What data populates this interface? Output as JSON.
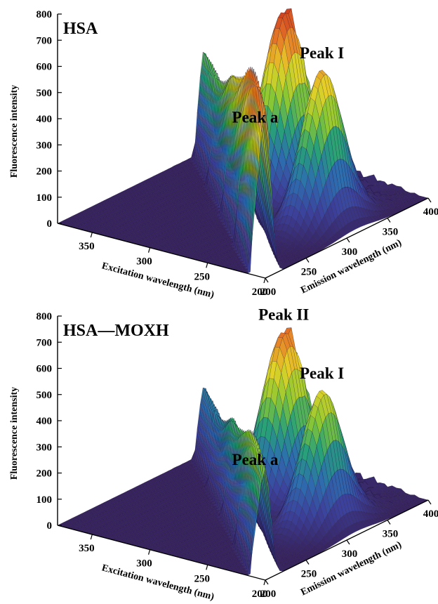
{
  "chart_data": [
    {
      "type": "surface",
      "title": "HSA",
      "zlabel": "Fluorescence intensity",
      "xlabel": "Excitation wavelength (nm)",
      "ylabel": "Emission wavelength (nm)",
      "z_ticks": [
        "0",
        "100",
        "200",
        "300",
        "400",
        "500",
        "600",
        "700",
        "800"
      ],
      "x_ticks": [
        "350",
        "300",
        "250",
        "200"
      ],
      "y_ticks": [
        "200",
        "250",
        "300",
        "350",
        "400"
      ],
      "zlim": [
        0,
        800
      ],
      "xlim": [
        200,
        380
      ],
      "ylim": [
        200,
        400
      ],
      "peaks": [
        {
          "label": "Peak a",
          "intensity": 710
        },
        {
          "label": "Peak I",
          "intensity": 590
        },
        {
          "label": "Peak II",
          "intensity": 720
        }
      ]
    },
    {
      "type": "surface",
      "title": "HSA—MOXH",
      "zlabel": "Fluorescence intensity",
      "xlabel": "Excitation wavelength (nm)",
      "ylabel": "Emission wavelength (nm)",
      "z_ticks": [
        "0",
        "100",
        "200",
        "300",
        "400",
        "500",
        "600",
        "700",
        "800"
      ],
      "x_ticks": [
        "350",
        "300",
        "250",
        "200"
      ],
      "y_ticks": [
        "200",
        "250",
        "300",
        "350",
        "400"
      ],
      "zlim": [
        0,
        800
      ],
      "xlim": [
        200,
        380
      ],
      "ylim": [
        200,
        400
      ],
      "peaks": [
        {
          "label": "Peak a",
          "intensity": 470
        },
        {
          "label": "Peak I",
          "intensity": 520
        },
        {
          "label": "Peak II",
          "intensity": 650
        }
      ]
    }
  ]
}
